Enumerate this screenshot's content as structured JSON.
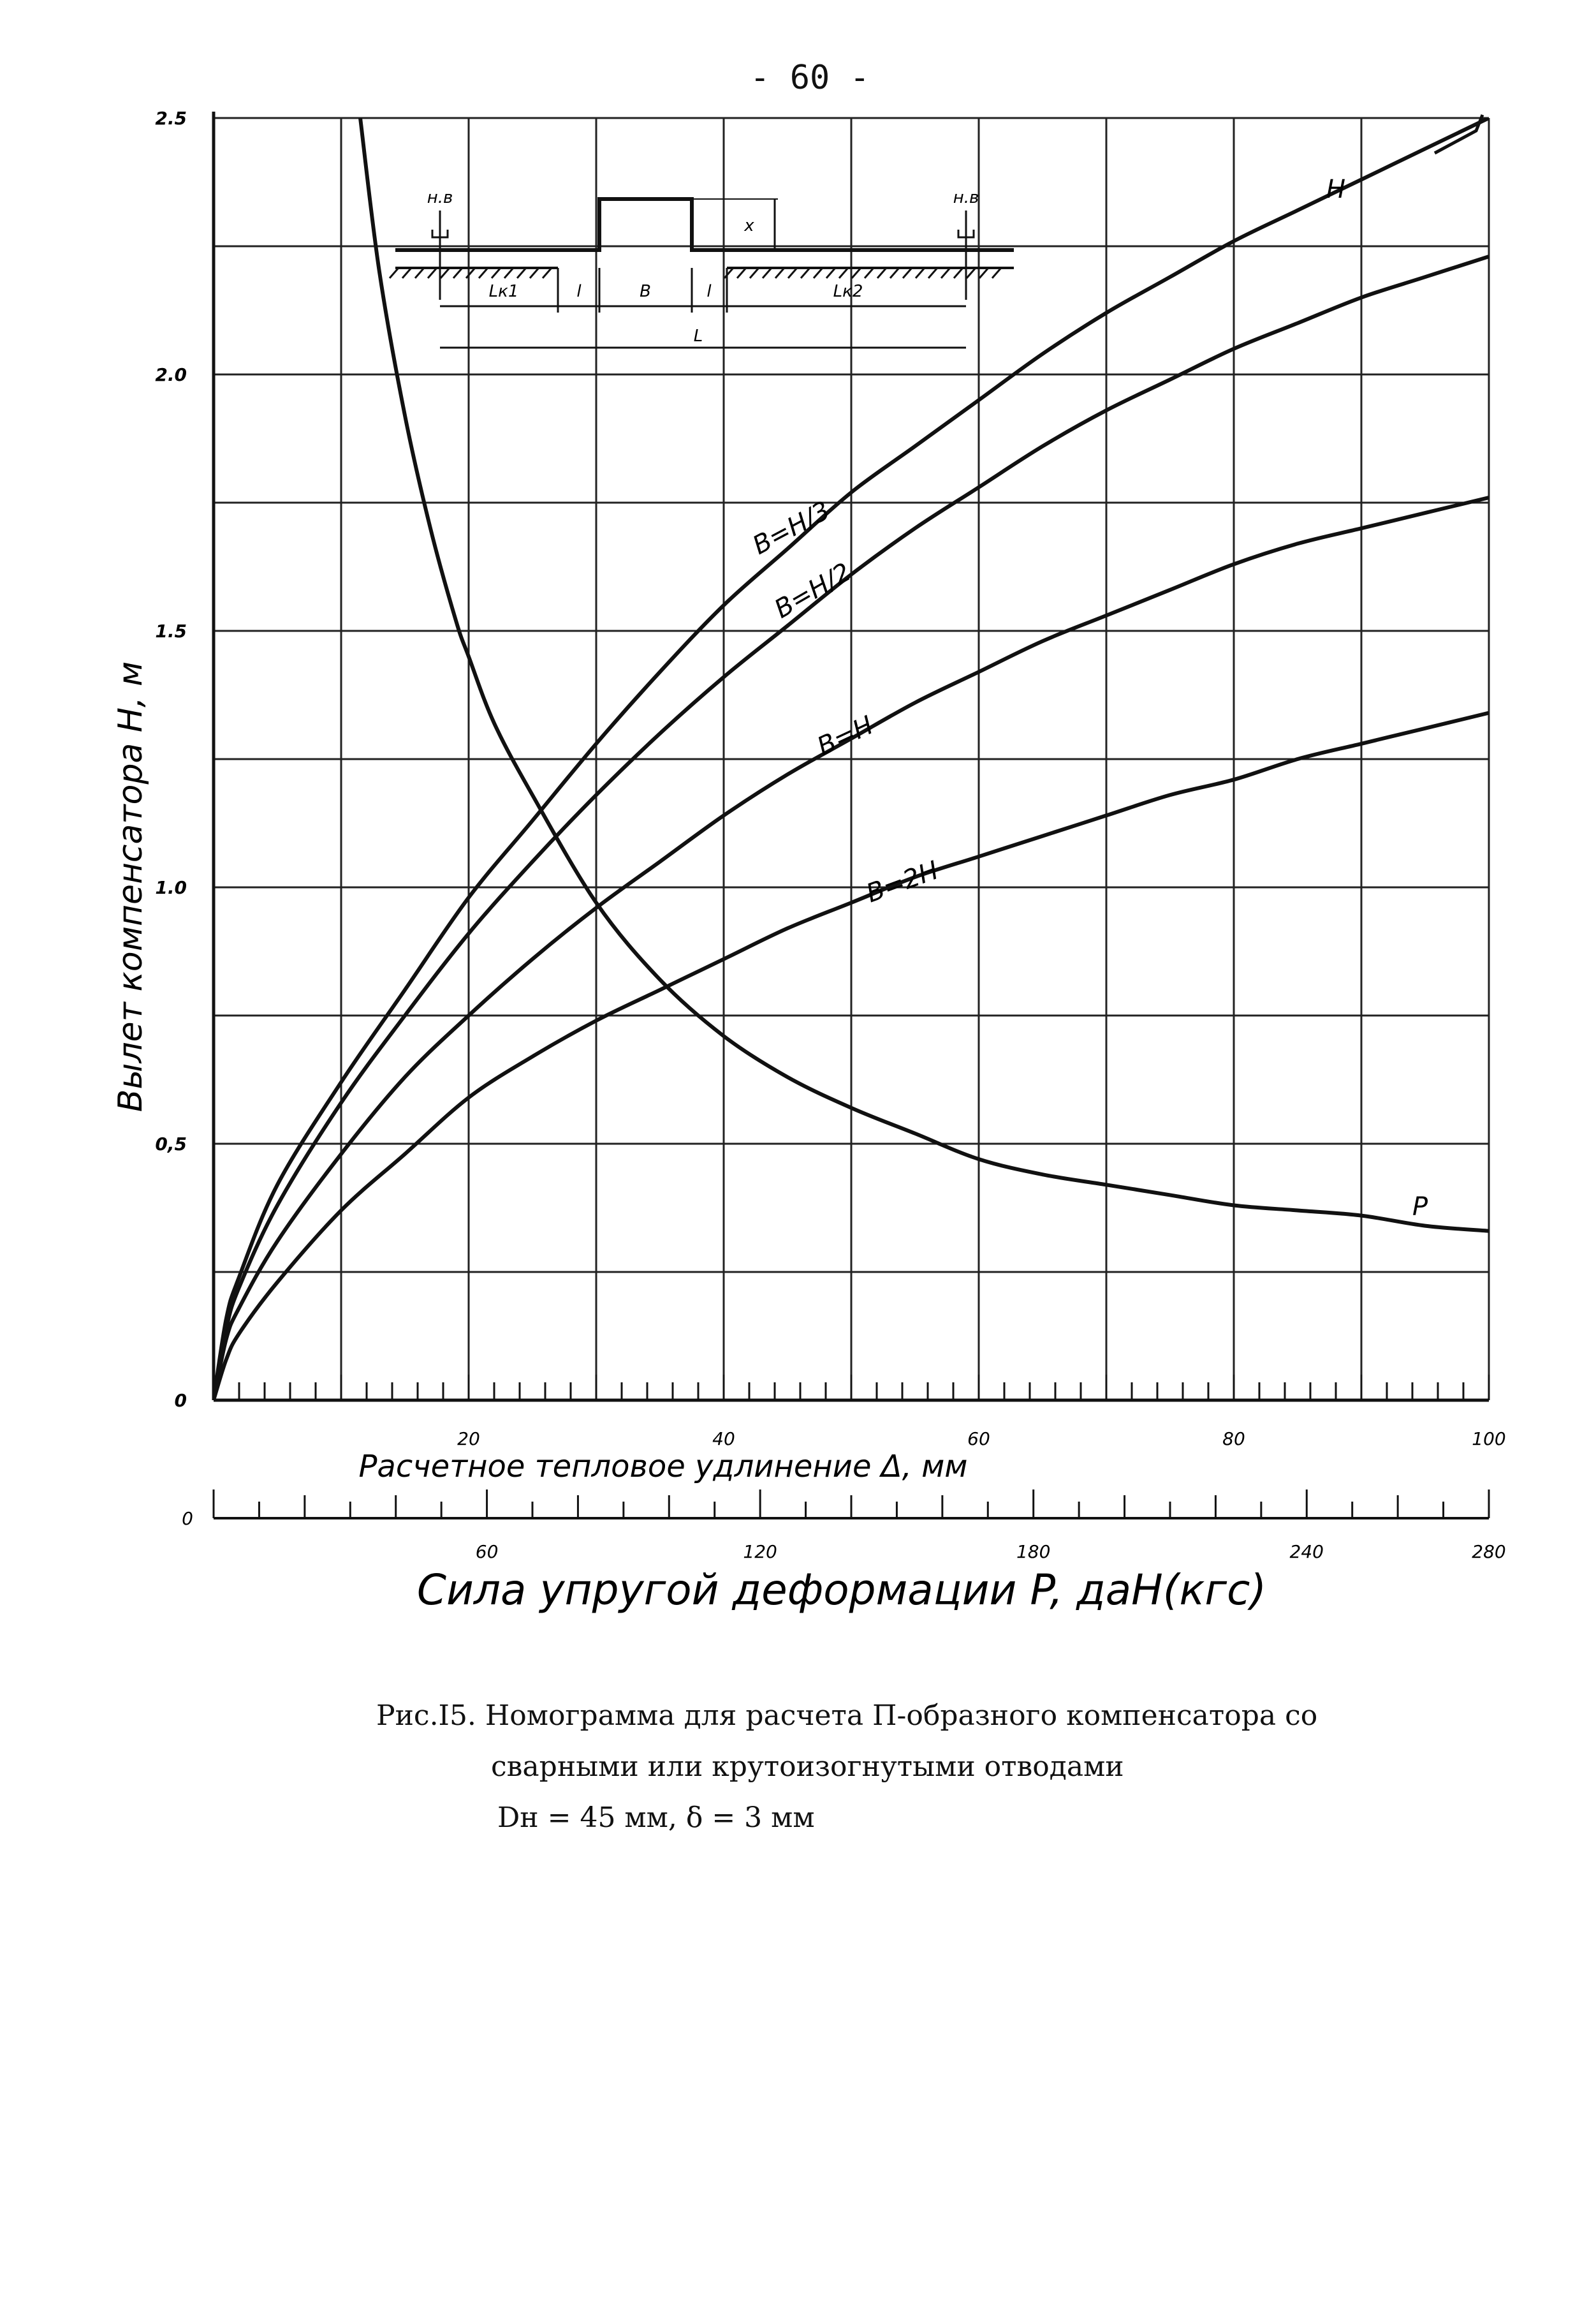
{
  "page_number": "- 60 -",
  "caption": {
    "line1": "Рис.I5. Номограмма для расчета П-образного компенсатора со",
    "line2": "сварными или крутоизогнутыми отводами",
    "line3": "Dн = 45 мм,  δ = 3 мм"
  },
  "diagram": {
    "labels": [
      "н.в",
      "н.в",
      "x",
      "Lк1",
      "l",
      "B",
      "l",
      "Lк2",
      "L"
    ]
  },
  "chart_data": {
    "type": "line",
    "title": "",
    "ylabel": "Вылет компенсатора  H, м",
    "xlabel": "Расчетное тепловое удлинение  Δ, мм",
    "x2label": "Сила упругой деформации  P, даН(кгс)",
    "ylim": [
      0,
      2.5
    ],
    "xlim": [
      0,
      100
    ],
    "x2lim": [
      0,
      280
    ],
    "yticks": [
      "0",
      "0,5",
      "1.0",
      "1.5",
      "2.0",
      "2.5"
    ],
    "xticks": [
      "20",
      "40",
      "60",
      "80",
      "100"
    ],
    "x2ticks": [
      "0",
      "60",
      "120",
      "180",
      "240",
      "280"
    ],
    "grid": true,
    "series": [
      {
        "name": "B=H/3",
        "x": [
          0,
          1,
          2,
          5,
          10,
          15,
          20,
          25,
          30,
          35,
          40,
          45,
          50,
          55,
          60,
          65,
          70,
          75,
          80,
          85,
          90,
          95,
          100
        ],
        "y": [
          0,
          0.16,
          0.24,
          0.42,
          0.62,
          0.8,
          0.98,
          1.13,
          1.28,
          1.42,
          1.55,
          1.66,
          1.77,
          1.86,
          1.95,
          2.04,
          2.12,
          2.19,
          2.26,
          2.32,
          2.38,
          2.44,
          2.5
        ]
      },
      {
        "name": "B=H/2",
        "x": [
          0,
          1,
          2,
          5,
          10,
          15,
          20,
          25,
          30,
          35,
          40,
          45,
          50,
          55,
          60,
          65,
          70,
          75,
          80,
          85,
          90,
          95,
          100
        ],
        "y": [
          0,
          0.14,
          0.22,
          0.38,
          0.58,
          0.75,
          0.91,
          1.05,
          1.18,
          1.3,
          1.41,
          1.51,
          1.61,
          1.7,
          1.78,
          1.86,
          1.93,
          1.99,
          2.05,
          2.1,
          2.15,
          2.19,
          2.23
        ]
      },
      {
        "name": "B=H",
        "x": [
          0,
          1,
          2,
          5,
          10,
          15,
          20,
          25,
          30,
          35,
          40,
          45,
          50,
          55,
          60,
          65,
          70,
          75,
          80,
          85,
          90,
          95,
          100
        ],
        "y": [
          0,
          0.12,
          0.18,
          0.31,
          0.48,
          0.63,
          0.75,
          0.86,
          0.96,
          1.05,
          1.14,
          1.22,
          1.29,
          1.36,
          1.42,
          1.48,
          1.53,
          1.58,
          1.63,
          1.67,
          1.7,
          1.73,
          1.76
        ]
      },
      {
        "name": "B=2H",
        "x": [
          0,
          1,
          2,
          5,
          10,
          15,
          20,
          25,
          30,
          35,
          40,
          45,
          50,
          55,
          60,
          65,
          70,
          75,
          80,
          85,
          90,
          95,
          100
        ],
        "y": [
          0,
          0.08,
          0.13,
          0.23,
          0.37,
          0.48,
          0.59,
          0.67,
          0.74,
          0.8,
          0.86,
          0.92,
          0.97,
          1.02,
          1.06,
          1.1,
          1.14,
          1.18,
          1.21,
          1.25,
          1.28,
          1.31,
          1.34
        ]
      },
      {
        "name": "P",
        "x": [
          11.5,
          13,
          15,
          17,
          19,
          20,
          22,
          25,
          30,
          35,
          40,
          45,
          50,
          55,
          60,
          65,
          70,
          75,
          80,
          85,
          90,
          95,
          100
        ],
        "y": [
          2.5,
          2.2,
          1.92,
          1.7,
          1.52,
          1.45,
          1.32,
          1.18,
          0.97,
          0.82,
          0.71,
          0.63,
          0.57,
          0.52,
          0.47,
          0.44,
          0.42,
          0.4,
          0.38,
          0.37,
          0.36,
          0.34,
          0.33
        ]
      }
    ],
    "annotations": [
      "H"
    ]
  }
}
